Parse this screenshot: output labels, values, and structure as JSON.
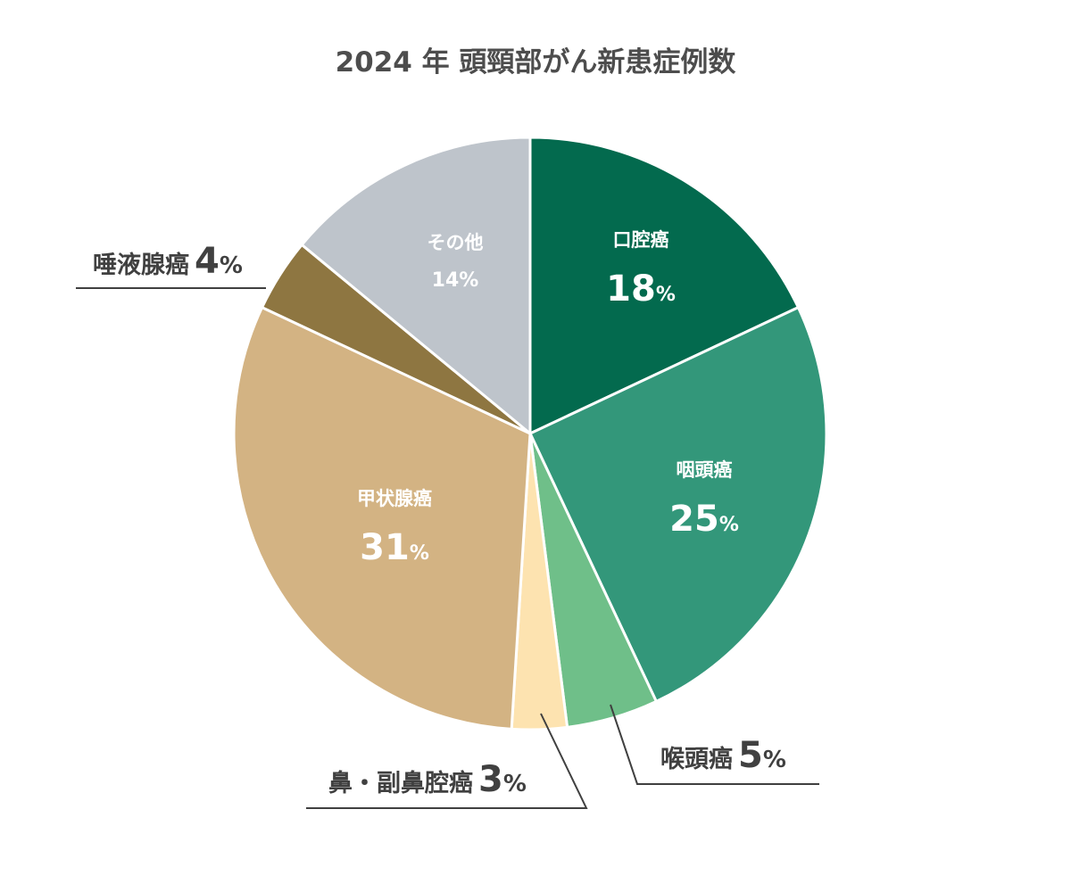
{
  "chart_data": {
    "type": "pie",
    "title": "2024 年 頭頸部がん新患症例数",
    "categories": [
      "口腔癌",
      "咽頭癌",
      "喉頭癌",
      "鼻・副鼻腔癌",
      "甲状腺癌",
      "唾液腺癌",
      "その他"
    ],
    "values": [
      18,
      25,
      5,
      3,
      31,
      4,
      14
    ],
    "unit": "%",
    "colors": [
      "#036a4e",
      "#33977a",
      "#6fbf89",
      "#fde3b0",
      "#d3b383",
      "#8e7641",
      "#bec4cb"
    ],
    "start_angle": "12 o'clock, clockwise",
    "legend": "none (direct labels)"
  },
  "labels": {
    "oral": {
      "name": "口腔癌",
      "pct": "18",
      "unit": "%"
    },
    "pharynx": {
      "name": "咽頭癌",
      "pct": "25",
      "unit": "%"
    },
    "larynx": {
      "name": "喉頭癌",
      "pct": "5",
      "unit": "%"
    },
    "nasal": {
      "name": "鼻・副鼻腔癌",
      "pct": "3",
      "unit": "%"
    },
    "thyroid": {
      "name": "甲状腺癌",
      "pct": "31",
      "unit": "%"
    },
    "salivary": {
      "name": "唾液腺癌",
      "pct": "4",
      "unit": "%"
    },
    "other": {
      "name": "その他",
      "pct": "14",
      "unit": "%"
    }
  }
}
